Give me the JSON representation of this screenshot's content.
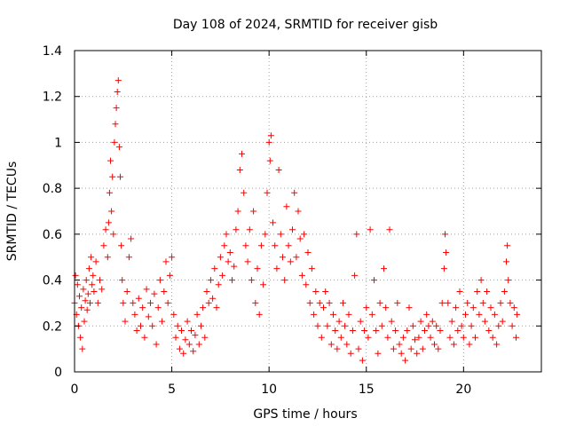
{
  "chart_data": {
    "type": "scatter",
    "title": "Day 108 of 2024, SRMTID for receiver gisb",
    "xlabel": "GPS time / hours",
    "ylabel": "SRMTID / TECUs",
    "xlim": [
      0,
      24
    ],
    "ylim": [
      0,
      1.4
    ],
    "x_ticks": [
      0,
      5,
      10,
      15,
      20
    ],
    "x_tick_labels": [
      "0",
      "5",
      "10",
      "15",
      "20"
    ],
    "y_ticks": [
      0,
      0.2,
      0.4,
      0.6,
      0.8,
      1.0,
      1.2,
      1.4
    ],
    "y_tick_labels": [
      "0",
      "0.2",
      "0.4",
      "0.6",
      "0.8",
      "1",
      "1.2",
      "1.4"
    ],
    "grid": true,
    "marker": "plus",
    "marker_color": "#ff0000",
    "series": [
      {
        "name": "SRMTID",
        "points": [
          [
            0.0,
            0.3
          ],
          [
            0.05,
            0.42
          ],
          [
            0.1,
            0.25
          ],
          [
            0.15,
            0.38
          ],
          [
            0.2,
            0.2
          ],
          [
            0.25,
            0.33
          ],
          [
            0.3,
            0.15
          ],
          [
            0.35,
            0.28
          ],
          [
            0.4,
            0.1
          ],
          [
            0.45,
            0.36
          ],
          [
            0.5,
            0.22
          ],
          [
            0.55,
            0.31
          ],
          [
            0.6,
            0.4
          ],
          [
            0.65,
            0.27
          ],
          [
            0.7,
            0.34
          ],
          [
            0.75,
            0.45
          ],
          [
            0.8,
            0.3
          ],
          [
            0.85,
            0.5
          ],
          [
            0.9,
            0.38
          ],
          [
            0.95,
            0.42
          ],
          [
            1.0,
            0.35
          ],
          [
            1.1,
            0.48
          ],
          [
            1.2,
            0.3
          ],
          [
            1.3,
            0.4
          ],
          [
            1.4,
            0.36
          ],
          [
            1.5,
            0.55
          ],
          [
            1.6,
            0.62
          ],
          [
            1.7,
            0.5
          ],
          [
            1.75,
            0.65
          ],
          [
            1.8,
            0.78
          ],
          [
            1.85,
            0.92
          ],
          [
            1.9,
            0.7
          ],
          [
            1.95,
            0.85
          ],
          [
            2.0,
            0.6
          ],
          [
            2.05,
            1.0
          ],
          [
            2.1,
            1.08
          ],
          [
            2.15,
            1.15
          ],
          [
            2.2,
            1.22
          ],
          [
            2.25,
            1.27
          ],
          [
            2.3,
            0.98
          ],
          [
            2.35,
            0.85
          ],
          [
            2.4,
            0.55
          ],
          [
            2.45,
            0.4
          ],
          [
            2.5,
            0.3
          ],
          [
            2.6,
            0.22
          ],
          [
            2.7,
            0.35
          ],
          [
            2.8,
            0.5
          ],
          [
            2.9,
            0.58
          ],
          [
            3.0,
            0.3
          ],
          [
            3.1,
            0.25
          ],
          [
            3.2,
            0.18
          ],
          [
            3.3,
            0.32
          ],
          [
            3.4,
            0.2
          ],
          [
            3.5,
            0.28
          ],
          [
            3.6,
            0.15
          ],
          [
            3.7,
            0.36
          ],
          [
            3.8,
            0.24
          ],
          [
            3.9,
            0.3
          ],
          [
            4.0,
            0.2
          ],
          [
            4.1,
            0.34
          ],
          [
            4.2,
            0.12
          ],
          [
            4.3,
            0.28
          ],
          [
            4.4,
            0.4
          ],
          [
            4.5,
            0.22
          ],
          [
            4.6,
            0.35
          ],
          [
            4.7,
            0.48
          ],
          [
            4.8,
            0.3
          ],
          [
            4.9,
            0.42
          ],
          [
            5.0,
            0.5
          ],
          [
            5.1,
            0.25
          ],
          [
            5.2,
            0.15
          ],
          [
            5.3,
            0.2
          ],
          [
            5.4,
            0.1
          ],
          [
            5.5,
            0.18
          ],
          [
            5.6,
            0.08
          ],
          [
            5.7,
            0.14
          ],
          [
            5.8,
            0.22
          ],
          [
            5.9,
            0.12
          ],
          [
            6.0,
            0.18
          ],
          [
            6.1,
            0.09
          ],
          [
            6.2,
            0.16
          ],
          [
            6.3,
            0.25
          ],
          [
            6.4,
            0.12
          ],
          [
            6.5,
            0.2
          ],
          [
            6.6,
            0.28
          ],
          [
            6.7,
            0.15
          ],
          [
            6.8,
            0.35
          ],
          [
            6.9,
            0.3
          ],
          [
            7.0,
            0.4
          ],
          [
            7.1,
            0.32
          ],
          [
            7.2,
            0.45
          ],
          [
            7.3,
            0.28
          ],
          [
            7.4,
            0.38
          ],
          [
            7.5,
            0.5
          ],
          [
            7.6,
            0.42
          ],
          [
            7.7,
            0.55
          ],
          [
            7.8,
            0.6
          ],
          [
            7.9,
            0.48
          ],
          [
            8.0,
            0.52
          ],
          [
            8.1,
            0.4
          ],
          [
            8.2,
            0.46
          ],
          [
            8.3,
            0.62
          ],
          [
            8.4,
            0.7
          ],
          [
            8.5,
            0.88
          ],
          [
            8.6,
            0.95
          ],
          [
            8.7,
            0.78
          ],
          [
            8.8,
            0.55
          ],
          [
            8.9,
            0.48
          ],
          [
            9.0,
            0.62
          ],
          [
            9.1,
            0.4
          ],
          [
            9.2,
            0.7
          ],
          [
            9.3,
            0.3
          ],
          [
            9.4,
            0.45
          ],
          [
            9.5,
            0.25
          ],
          [
            9.6,
            0.55
          ],
          [
            9.7,
            0.38
          ],
          [
            9.8,
            0.6
          ],
          [
            9.9,
            0.78
          ],
          [
            10.0,
            1.0
          ],
          [
            10.05,
            0.92
          ],
          [
            10.1,
            1.03
          ],
          [
            10.2,
            0.65
          ],
          [
            10.3,
            0.55
          ],
          [
            10.4,
            0.45
          ],
          [
            10.5,
            0.88
          ],
          [
            10.6,
            0.6
          ],
          [
            10.7,
            0.5
          ],
          [
            10.8,
            0.4
          ],
          [
            10.9,
            0.72
          ],
          [
            11.0,
            0.55
          ],
          [
            11.1,
            0.48
          ],
          [
            11.2,
            0.62
          ],
          [
            11.3,
            0.78
          ],
          [
            11.4,
            0.5
          ],
          [
            11.5,
            0.7
          ],
          [
            11.6,
            0.58
          ],
          [
            11.7,
            0.42
          ],
          [
            11.8,
            0.6
          ],
          [
            11.9,
            0.38
          ],
          [
            12.0,
            0.52
          ],
          [
            12.1,
            0.3
          ],
          [
            12.2,
            0.45
          ],
          [
            12.3,
            0.25
          ],
          [
            12.4,
            0.35
          ],
          [
            12.5,
            0.2
          ],
          [
            12.6,
            0.3
          ],
          [
            12.7,
            0.15
          ],
          [
            12.8,
            0.28
          ],
          [
            12.9,
            0.35
          ],
          [
            13.0,
            0.2
          ],
          [
            13.1,
            0.3
          ],
          [
            13.2,
            0.12
          ],
          [
            13.3,
            0.25
          ],
          [
            13.4,
            0.18
          ],
          [
            13.5,
            0.1
          ],
          [
            13.6,
            0.22
          ],
          [
            13.7,
            0.15
          ],
          [
            13.8,
            0.3
          ],
          [
            13.9,
            0.2
          ],
          [
            14.0,
            0.12
          ],
          [
            14.1,
            0.25
          ],
          [
            14.2,
            0.08
          ],
          [
            14.3,
            0.18
          ],
          [
            14.4,
            0.42
          ],
          [
            14.5,
            0.6
          ],
          [
            14.6,
            0.1
          ],
          [
            14.7,
            0.22
          ],
          [
            14.8,
            0.05
          ],
          [
            14.9,
            0.18
          ],
          [
            15.0,
            0.28
          ],
          [
            15.1,
            0.15
          ],
          [
            15.2,
            0.62
          ],
          [
            15.3,
            0.25
          ],
          [
            15.4,
            0.4
          ],
          [
            15.5,
            0.18
          ],
          [
            15.6,
            0.08
          ],
          [
            15.7,
            0.3
          ],
          [
            15.8,
            0.2
          ],
          [
            15.9,
            0.45
          ],
          [
            16.0,
            0.28
          ],
          [
            16.1,
            0.15
          ],
          [
            16.2,
            0.62
          ],
          [
            16.3,
            0.22
          ],
          [
            16.4,
            0.1
          ],
          [
            16.5,
            0.18
          ],
          [
            16.6,
            0.3
          ],
          [
            16.7,
            0.12
          ],
          [
            16.8,
            0.08
          ],
          [
            16.9,
            0.15
          ],
          [
            17.0,
            0.05
          ],
          [
            17.1,
            0.18
          ],
          [
            17.2,
            0.28
          ],
          [
            17.3,
            0.1
          ],
          [
            17.4,
            0.2
          ],
          [
            17.5,
            0.14
          ],
          [
            17.6,
            0.08
          ],
          [
            17.7,
            0.15
          ],
          [
            17.8,
            0.22
          ],
          [
            17.9,
            0.1
          ],
          [
            18.0,
            0.18
          ],
          [
            18.1,
            0.25
          ],
          [
            18.2,
            0.2
          ],
          [
            18.3,
            0.15
          ],
          [
            18.4,
            0.22
          ],
          [
            18.5,
            0.12
          ],
          [
            18.6,
            0.2
          ],
          [
            18.7,
            0.1
          ],
          [
            18.8,
            0.18
          ],
          [
            18.9,
            0.3
          ],
          [
            19.0,
            0.45
          ],
          [
            19.05,
            0.6
          ],
          [
            19.1,
            0.52
          ],
          [
            19.2,
            0.3
          ],
          [
            19.3,
            0.15
          ],
          [
            19.4,
            0.22
          ],
          [
            19.5,
            0.12
          ],
          [
            19.6,
            0.28
          ],
          [
            19.7,
            0.18
          ],
          [
            19.8,
            0.35
          ],
          [
            19.9,
            0.2
          ],
          [
            20.0,
            0.15
          ],
          [
            20.1,
            0.25
          ],
          [
            20.2,
            0.3
          ],
          [
            20.3,
            0.12
          ],
          [
            20.4,
            0.2
          ],
          [
            20.5,
            0.28
          ],
          [
            20.6,
            0.15
          ],
          [
            20.7,
            0.35
          ],
          [
            20.8,
            0.25
          ],
          [
            20.9,
            0.4
          ],
          [
            21.0,
            0.3
          ],
          [
            21.1,
            0.22
          ],
          [
            21.2,
            0.35
          ],
          [
            21.3,
            0.18
          ],
          [
            21.4,
            0.28
          ],
          [
            21.5,
            0.15
          ],
          [
            21.6,
            0.25
          ],
          [
            21.7,
            0.12
          ],
          [
            21.8,
            0.2
          ],
          [
            21.9,
            0.3
          ],
          [
            22.0,
            0.22
          ],
          [
            22.1,
            0.35
          ],
          [
            22.2,
            0.48
          ],
          [
            22.25,
            0.55
          ],
          [
            22.3,
            0.4
          ],
          [
            22.4,
            0.3
          ],
          [
            22.5,
            0.2
          ],
          [
            22.6,
            0.28
          ],
          [
            22.7,
            0.15
          ],
          [
            22.75,
            0.25
          ]
        ]
      }
    ]
  }
}
